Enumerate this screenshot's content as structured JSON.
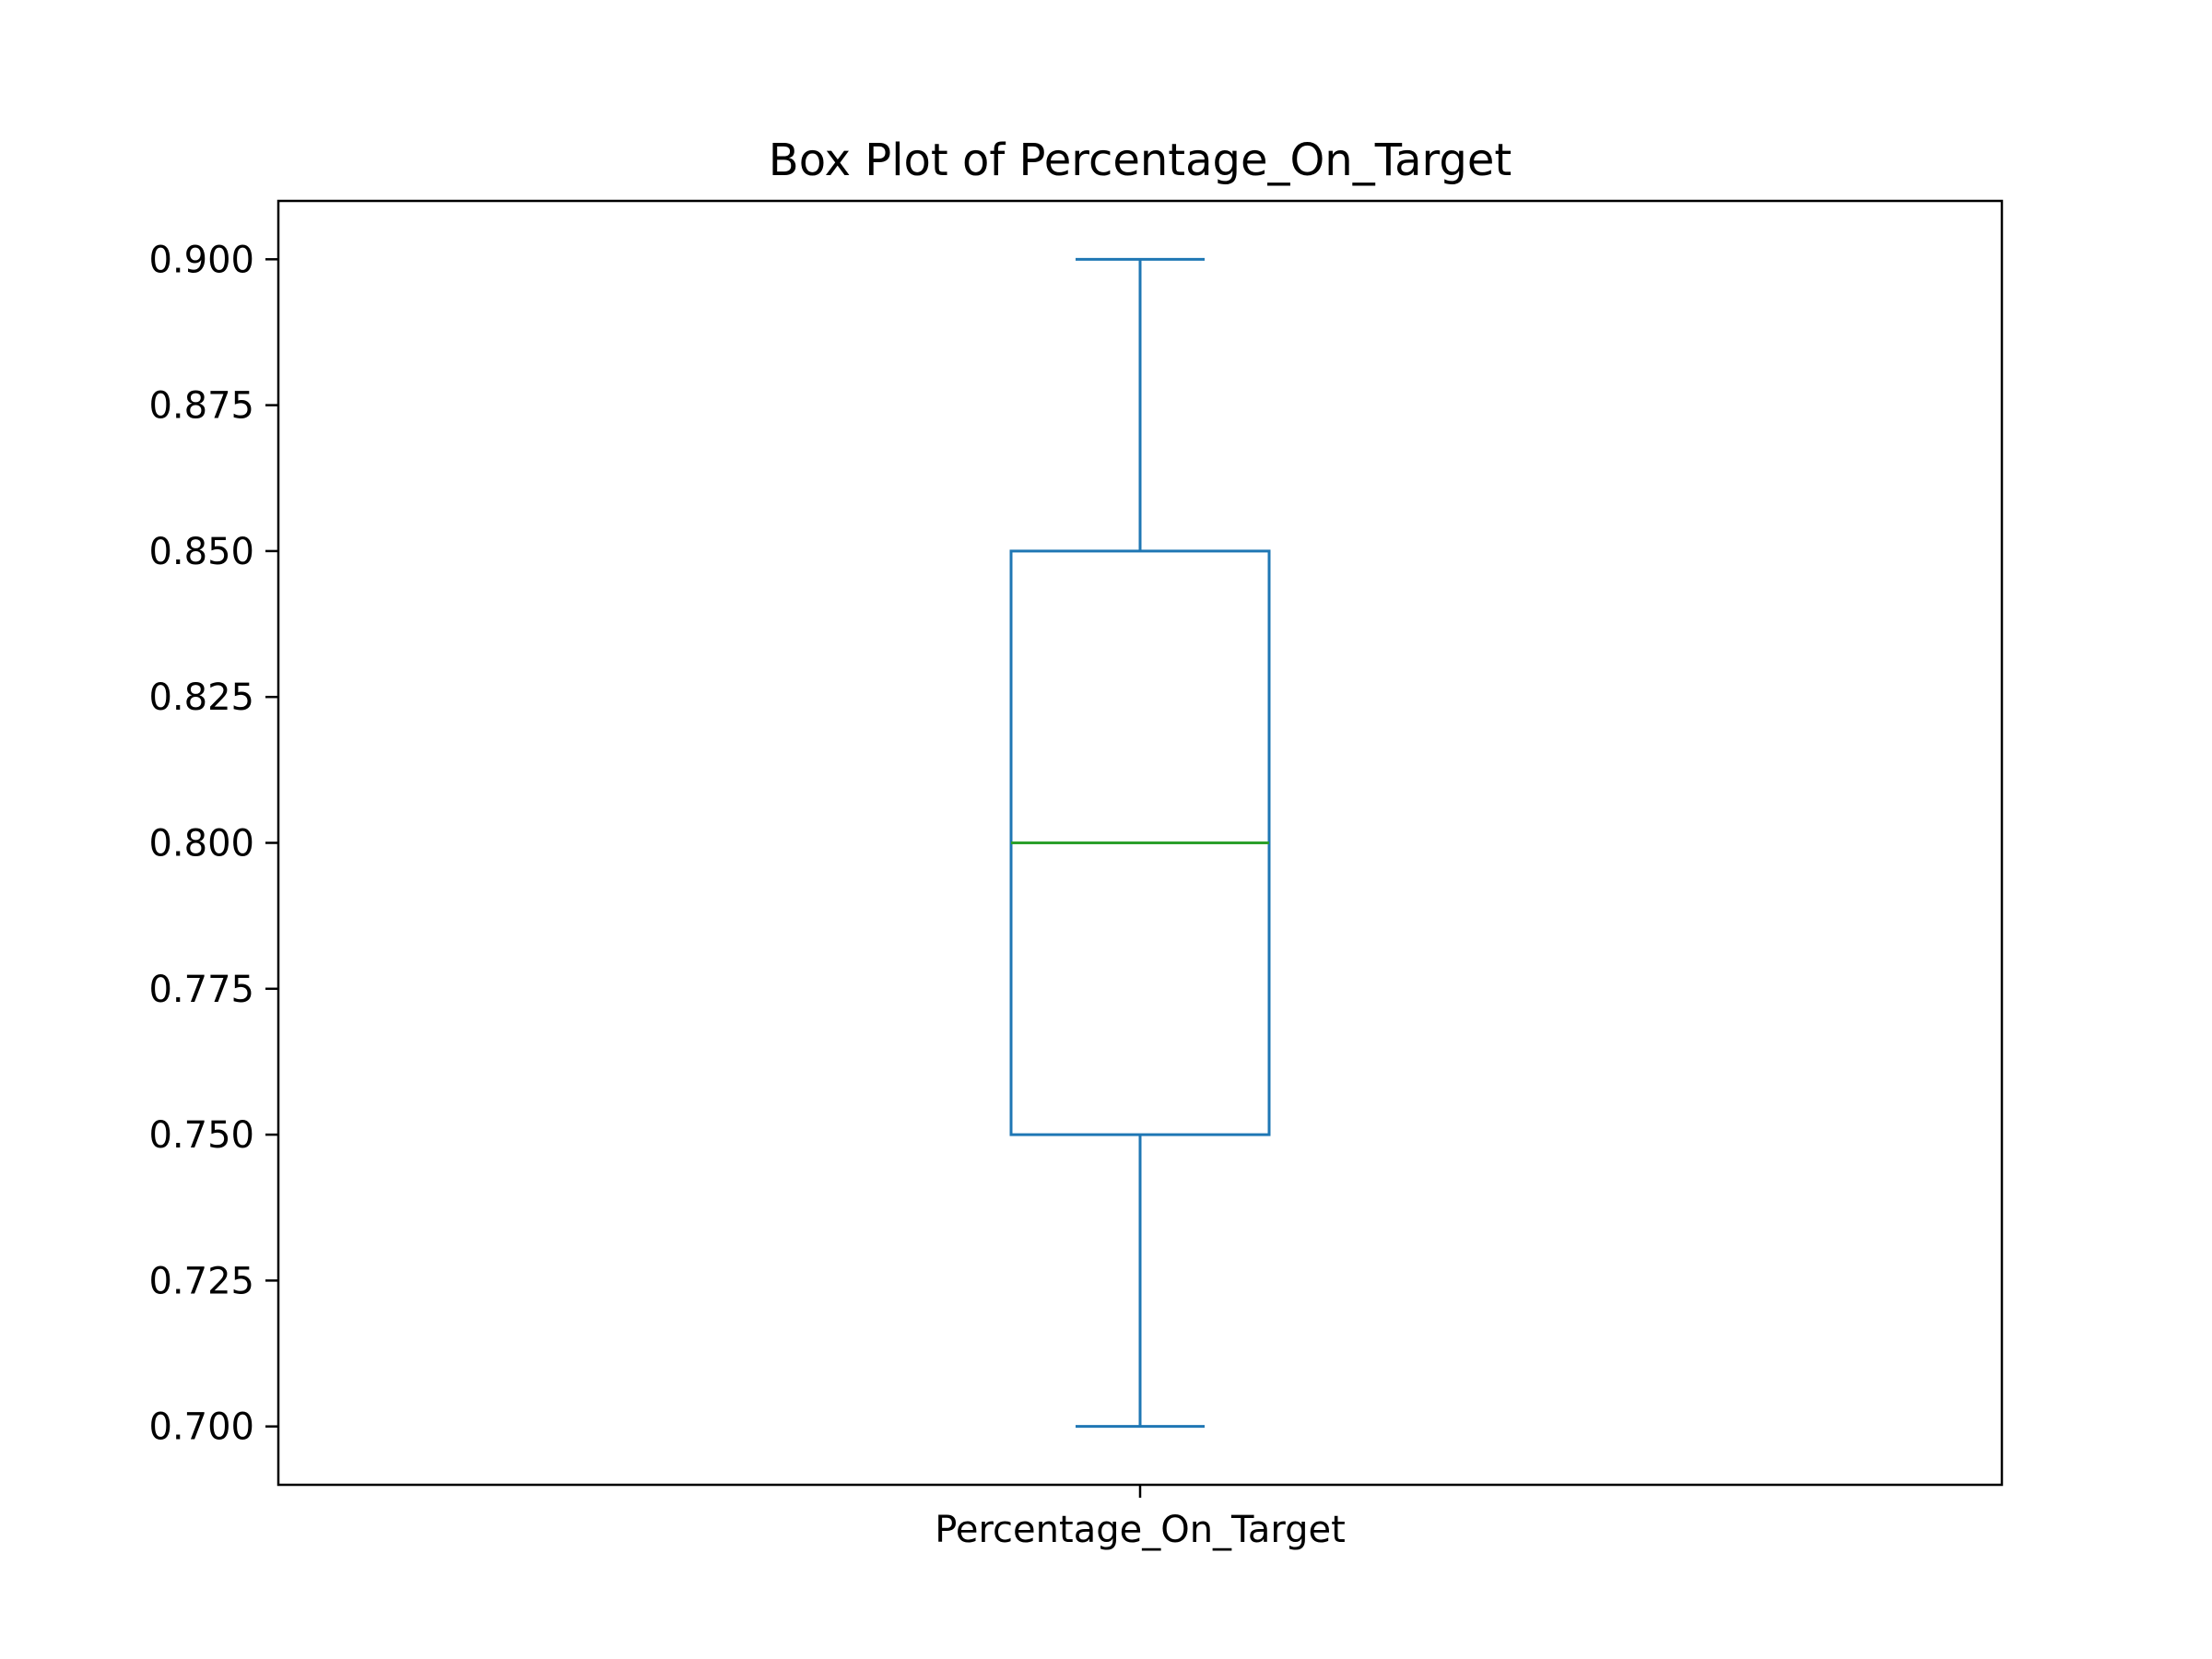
{
  "chart_data": {
    "type": "box",
    "title": "Box Plot of Percentage_On_Target",
    "xlabel": "",
    "ylabel": "",
    "categories": [
      "Percentage_On_Target"
    ],
    "boxes": [
      {
        "category": "Percentage_On_Target",
        "whisker_low": 0.7,
        "q1": 0.75,
        "median": 0.8,
        "q3": 0.85,
        "whisker_high": 0.9
      }
    ],
    "ylim": [
      0.69,
      0.91
    ],
    "yticks": [
      0.7,
      0.725,
      0.75,
      0.775,
      0.8,
      0.825,
      0.85,
      0.875,
      0.9
    ],
    "ytick_labels": [
      "0.700",
      "0.725",
      "0.750",
      "0.775",
      "0.800",
      "0.825",
      "0.850",
      "0.875",
      "0.900"
    ],
    "grid": false,
    "colors": {
      "box": "#1f77b4",
      "median": "#2ca02c",
      "axes": "#000000"
    }
  }
}
